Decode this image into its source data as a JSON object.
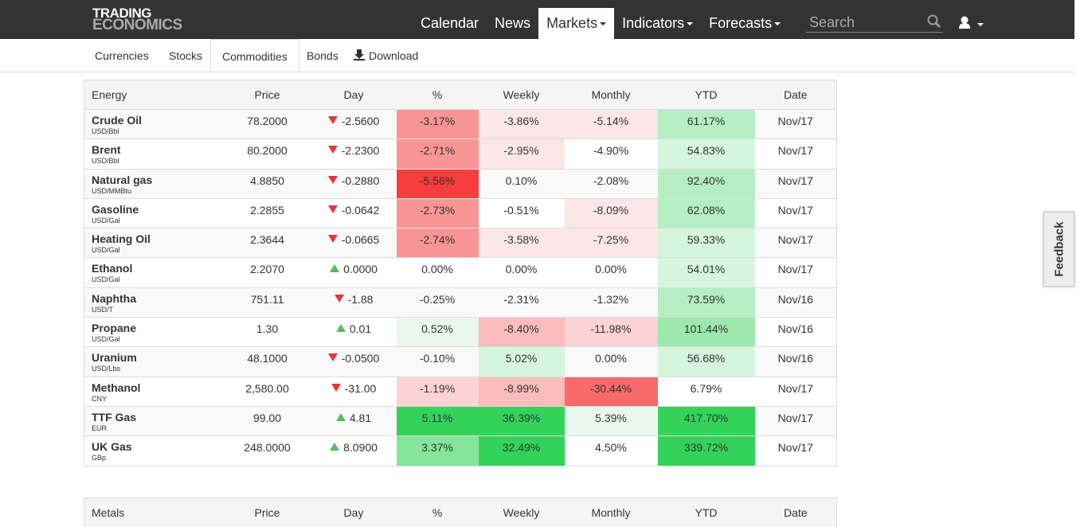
{
  "nav": {
    "logo": [
      "TRADING",
      "ECONOMICS"
    ],
    "links": [
      "Calendar",
      "News",
      "Markets",
      "Indicators",
      "Forecasts"
    ],
    "search": "Search"
  },
  "tabs": [
    "Currencies",
    "Stocks",
    "Commodities",
    "Bonds",
    "Download"
  ],
  "table": {
    "headers": [
      "Energy",
      "Price",
      "Day",
      "%",
      "Weekly",
      "Monthly",
      "YTD",
      "Date"
    ],
    "rows": [
      {
        "name": "Crude Oil",
        "unit": "USD/Bbl",
        "price": "78.2000",
        "day": "-2.5600",
        "pct": "-3.17%",
        "weekly": "-3.86%",
        "monthly": "-5.14%",
        "ytd": "61.17%",
        "date": "Nov/17"
      },
      {
        "name": "Brent",
        "unit": "USD/Bbl",
        "price": "80.2000",
        "day": "-2.2300",
        "pct": "-2.71%",
        "weekly": "-2.95%",
        "monthly": "-4.90%",
        "ytd": "54.83%",
        "date": "Nov/17"
      },
      {
        "name": "Natural gas",
        "unit": "USD/MMBtu",
        "price": "4.8850",
        "day": "-0.2880",
        "pct": "-5.56%",
        "weekly": "0.10%",
        "monthly": "-2.08%",
        "ytd": "92.40%",
        "date": "Nov/17"
      },
      {
        "name": "Gasoline",
        "unit": "USD/Gal",
        "price": "2.2855",
        "day": "-0.0642",
        "pct": "-2.73%",
        "weekly": "-0.51%",
        "monthly": "-8.09%",
        "ytd": "62.08%",
        "date": "Nov/17"
      },
      {
        "name": "Heating Oil",
        "unit": "USD/Gal",
        "price": "2.3644",
        "day": "-0.0665",
        "pct": "-2.74%",
        "weekly": "-3.58%",
        "monthly": "-7.25%",
        "ytd": "59.33%",
        "date": "Nov/17"
      },
      {
        "name": "Ethanol",
        "unit": "USD/Gal",
        "price": "2.2070",
        "day": "0.0000",
        "pct": "0.00%",
        "weekly": "0.00%",
        "monthly": "0.00%",
        "ytd": "54.01%",
        "date": "Nov/17"
      },
      {
        "name": "Naphtha",
        "unit": "USD/T",
        "price": "751.11",
        "day": "-1.88",
        "pct": "-0.25%",
        "weekly": "-2.31%",
        "monthly": "-1.32%",
        "ytd": "73.59%",
        "date": "Nov/16"
      },
      {
        "name": "Propane",
        "unit": "USD/Gal",
        "price": "1.30",
        "day": "0.01",
        "pct": "0.52%",
        "weekly": "-8.40%",
        "monthly": "-11.98%",
        "ytd": "101.44%",
        "date": "Nov/16"
      },
      {
        "name": "Uranium",
        "unit": "USD/Lbs",
        "price": "48.1000",
        "day": "-0.0500",
        "pct": "-0.10%",
        "weekly": "5.02%",
        "monthly": "0.00%",
        "ytd": "56.68%",
        "date": "Nov/16"
      },
      {
        "name": "Methanol",
        "unit": "CNY",
        "price": "2,580.00",
        "day": "-31.00",
        "pct": "-1.19%",
        "weekly": "-8.99%",
        "monthly": "-30.44%",
        "ytd": "6.79%",
        "date": "Nov/17"
      },
      {
        "name": "TTF Gas",
        "unit": "EUR",
        "price": "99.00",
        "day": "4.81",
        "pct": "5.11%",
        "weekly": "36.39%",
        "monthly": "5.39%",
        "ytd": "417.70%",
        "date": "Nov/17"
      },
      {
        "name": "UK Gas",
        "unit": "GBp",
        "price": "248.0000",
        "day": "8.0900",
        "pct": "3.37%",
        "weekly": "32.49%",
        "monthly": "4.50%",
        "ytd": "339.72%",
        "date": "Nov/17"
      }
    ]
  },
  "table2": {
    "headers": [
      "Metals",
      "Price",
      "Day",
      "%",
      "Weekly",
      "Monthly",
      "YTD",
      "Date"
    ]
  },
  "feedback": "Feedback"
}
